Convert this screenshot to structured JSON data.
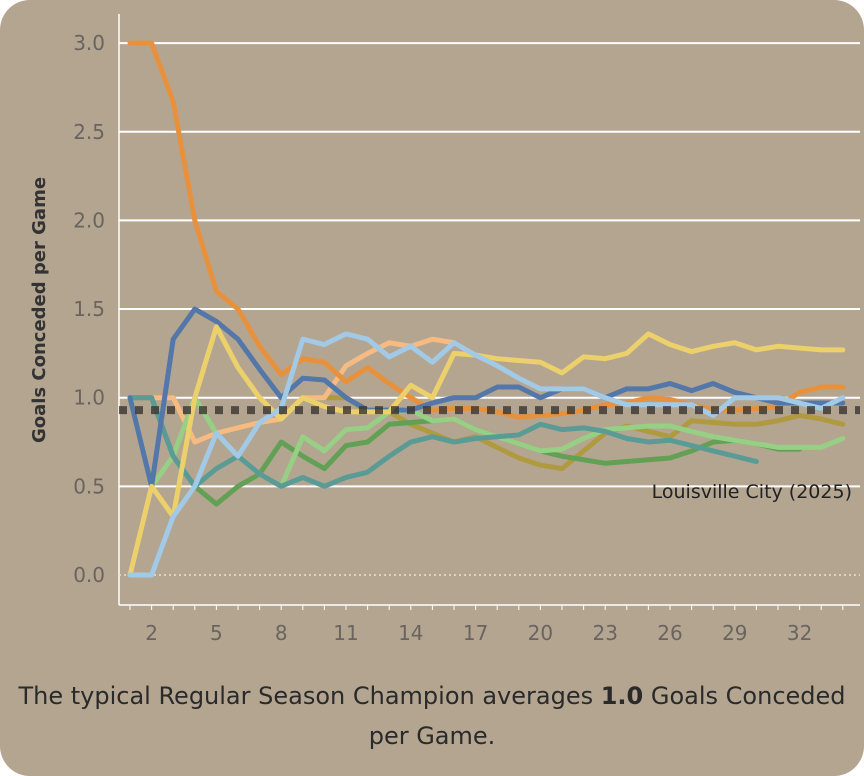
{
  "chart_data": {
    "type": "line",
    "ylabel": "Goals Conceded per Game",
    "xlabel": "",
    "ylim": [
      0,
      3.0
    ],
    "xlim": [
      1,
      34
    ],
    "yticks": [
      "0.0",
      "0.5",
      "1.0",
      "1.5",
      "2.0",
      "2.5",
      "3.0"
    ],
    "xticks": [
      "2",
      "5",
      "8",
      "11",
      "14",
      "17",
      "20",
      "23",
      "26",
      "29",
      "32"
    ],
    "reference_line": {
      "value": 0.93,
      "label": "Louisville City (2025)"
    },
    "series": [
      {
        "name": "olive",
        "color": "#b09a40",
        "values": [
          1,
          1,
          1,
          0.75,
          0.8,
          0.83,
          0.86,
          0.88,
          1.0,
          1.0,
          1.0,
          0.92,
          0.92,
          0.85,
          0.8,
          0.75,
          0.78,
          0.72,
          0.66,
          0.62,
          0.6,
          0.7,
          0.8,
          0.84,
          0.81,
          0.78,
          0.87,
          0.86,
          0.85,
          0.85,
          0.87,
          0.9,
          0.88,
          0.85
        ]
      },
      {
        "name": "peach",
        "color": "#f5bb83",
        "values": [
          1,
          1,
          1,
          0.75,
          0.8,
          0.83,
          0.86,
          0.88,
          1.0,
          1.0,
          1.18,
          1.25,
          1.31,
          1.29,
          1.33,
          1.31
        ]
      },
      {
        "name": "green",
        "color": "#62a155",
        "values": [
          1,
          1,
          0.67,
          0.5,
          0.4,
          0.5,
          0.57,
          0.75,
          0.67,
          0.6,
          0.73,
          0.75,
          0.85,
          0.86,
          0.87,
          0.88,
          0.82,
          0.78,
          0.74,
          0.7,
          0.67,
          0.65,
          0.63,
          0.64,
          0.65,
          0.66,
          0.7,
          0.75,
          0.76,
          0.74,
          0.71,
          0.71
        ]
      },
      {
        "name": "light-green",
        "color": "#97cf85",
        "values": [
          1,
          0.5,
          0.67,
          1.0,
          0.8,
          0.67,
          0.57,
          0.5,
          0.78,
          0.7,
          0.82,
          0.83,
          0.92,
          0.93,
          0.87,
          0.88,
          0.82,
          0.78,
          0.74,
          0.7,
          0.71,
          0.77,
          0.82,
          0.83,
          0.84,
          0.84,
          0.81,
          0.78,
          0.76,
          0.74,
          0.72,
          0.72,
          0.72,
          0.77
        ]
      },
      {
        "name": "teal",
        "color": "#5a9b96",
        "values": [
          1,
          1,
          0.67,
          0.5,
          0.6,
          0.67,
          0.57,
          0.5,
          0.55,
          0.5,
          0.55,
          0.58,
          0.67,
          0.75,
          0.78,
          0.75,
          0.77,
          0.78,
          0.79,
          0.85,
          0.82,
          0.83,
          0.81,
          0.77,
          0.75,
          0.76,
          0.73,
          0.7,
          0.67,
          0.64
        ]
      },
      {
        "name": "orange",
        "color": "#e8913d",
        "values": [
          3,
          3,
          2.67,
          2.0,
          1.6,
          1.5,
          1.29,
          1.13,
          1.22,
          1.2,
          1.09,
          1.17,
          1.08,
          1.0,
          0.93,
          0.94,
          0.94,
          0.92,
          0.89,
          0.9,
          0.91,
          0.93,
          0.96,
          0.97,
          1.0,
          0.99,
          0.96,
          0.93,
          0.93,
          0.94,
          0.95,
          1.03,
          1.06,
          1.06
        ]
      },
      {
        "name": "blue",
        "color": "#5377a8",
        "values": [
          1.0,
          0.5,
          1.33,
          1.5,
          1.43,
          1.33,
          1.16,
          1.0,
          1.11,
          1.1,
          1.0,
          0.93,
          0.93,
          0.93,
          0.97,
          1.0,
          1.0,
          1.06,
          1.06,
          1.0,
          1.05,
          1.05,
          1.0,
          1.05,
          1.05,
          1.08,
          1.04,
          1.08,
          1.03,
          1.0,
          0.97,
          0.97,
          0.97,
          0.97
        ]
      },
      {
        "name": "yellow",
        "color": "#ebd06c",
        "values": [
          0,
          0.5,
          0.33,
          1.0,
          1.4,
          1.17,
          1.0,
          0.88,
          1.0,
          0.95,
          0.92,
          0.92,
          0.92,
          1.07,
          1.0,
          1.25,
          1.24,
          1.22,
          1.21,
          1.2,
          1.14,
          1.23,
          1.22,
          1.25,
          1.36,
          1.3,
          1.26,
          1.29,
          1.31,
          1.27,
          1.29,
          1.28,
          1.27,
          1.27
        ]
      },
      {
        "name": "light-blue",
        "color": "#a2c9e6",
        "values": [
          0,
          0,
          0.33,
          0.5,
          0.8,
          0.67,
          0.86,
          0.94,
          1.33,
          1.3,
          1.36,
          1.33,
          1.23,
          1.29,
          1.2,
          1.31,
          1.24,
          1.18,
          1.11,
          1.05,
          1.05,
          1.05,
          1.0,
          0.96,
          0.96,
          0.96,
          0.96,
          0.9,
          1.0,
          1.0,
          1.0,
          0.97,
          0.94,
          1.0
        ]
      }
    ]
  },
  "caption": {
    "before": "The typical Regular Season Champion averages ",
    "value": "1.0",
    "after": " Goals Conceded per Game."
  }
}
